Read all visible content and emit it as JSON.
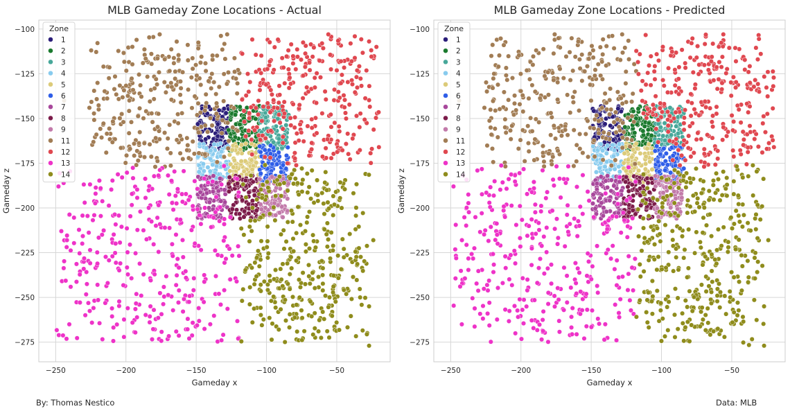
{
  "footer": {
    "left": "By: Thomas Nestico",
    "right": "Data: MLB"
  },
  "colors": {
    "1": "#2b1e7a",
    "2": "#1b7a2e",
    "3": "#48a89a",
    "4": "#88cbee",
    "5": "#dccb79",
    "6": "#2f5ee8",
    "7": "#a8489c",
    "8": "#7c1c4a",
    "9": "#c27aaa",
    "10": "#bbbbbb",
    "11": "#a27d55",
    "12": "#e04850",
    "13": "#ee33c8",
    "14": "#8f8c1c"
  },
  "chart_data": [
    {
      "type": "scatter",
      "title": "MLB Gameday Zone Locations - Actual",
      "xlabel": "Gameday x",
      "ylabel": "Gameday z",
      "xlim": [
        -262,
        -12
      ],
      "ylim": [
        -286,
        -95
      ],
      "y_inverted": true,
      "xticks": [
        -250,
        -200,
        -150,
        -100,
        -50
      ],
      "yticks": [
        -100,
        -125,
        -150,
        -175,
        -200,
        -225,
        -250,
        -275
      ],
      "grid": true,
      "legend": {
        "title": "Zone",
        "position": "top-left",
        "entries": [
          "1",
          "2",
          "3",
          "4",
          "5",
          "6",
          "7",
          "8",
          "9",
          "11",
          "12",
          "13",
          "14"
        ]
      },
      "series": [
        {
          "name": "1",
          "x_range": [
            -149,
            -127
          ],
          "z_range": [
            -168,
            -143
          ],
          "count": 110
        },
        {
          "name": "2",
          "x_range": [
            -127,
            -105
          ],
          "z_range": [
            -168,
            -143
          ],
          "count": 110
        },
        {
          "name": "3",
          "x_range": [
            -105,
            -84
          ],
          "z_range": [
            -168,
            -143
          ],
          "count": 110
        },
        {
          "name": "4",
          "x_range": [
            -149,
            -127
          ],
          "z_range": [
            -186,
            -164
          ],
          "count": 100
        },
        {
          "name": "5",
          "x_range": [
            -127,
            -105
          ],
          "z_range": [
            -186,
            -164
          ],
          "count": 100
        },
        {
          "name": "6",
          "x_range": [
            -105,
            -84
          ],
          "z_range": [
            -186,
            -164
          ],
          "count": 100
        },
        {
          "name": "7",
          "x_range": [
            -149,
            -127
          ],
          "z_range": [
            -206,
            -182
          ],
          "count": 100
        },
        {
          "name": "8",
          "x_range": [
            -127,
            -105
          ],
          "z_range": [
            -206,
            -182
          ],
          "count": 100
        },
        {
          "name": "9",
          "x_range": [
            -105,
            -84
          ],
          "z_range": [
            -206,
            -182
          ],
          "count": 100
        },
        {
          "name": "11",
          "x_range": [
            -225,
            -118
          ],
          "z_range": [
            -177,
            -103
          ],
          "count": 330
        },
        {
          "name": "12",
          "x_range": [
            -118,
            -20
          ],
          "z_range": [
            -177,
            -103
          ],
          "count": 330
        },
        {
          "name": "13",
          "x_range": [
            -250,
            -118
          ],
          "z_range": [
            -275,
            -176
          ],
          "count": 380
        },
        {
          "name": "14",
          "x_range": [
            -118,
            -27
          ],
          "z_range": [
            -277,
            -176
          ],
          "count": 420
        }
      ],
      "outliers": [
        {
          "zone": "13",
          "x": -248,
          "z": -188
        },
        {
          "zone": "13",
          "x": -242,
          "z": -218
        },
        {
          "zone": "13",
          "x": -213,
          "z": -242
        },
        {
          "zone": "13",
          "x": -217,
          "z": -215
        },
        {
          "zone": "13",
          "x": -204,
          "z": -231
        },
        {
          "zone": "13",
          "x": -155,
          "z": -273
        },
        {
          "zone": "13",
          "x": -132,
          "z": -274
        },
        {
          "zone": "13",
          "x": -140,
          "z": -265
        },
        {
          "zone": "11",
          "x": -244,
          "z": -140
        },
        {
          "zone": "11",
          "x": -226,
          "z": -144
        },
        {
          "zone": "11",
          "x": -216,
          "z": -121
        },
        {
          "zone": "11",
          "x": -221,
          "z": -159
        },
        {
          "zone": "11",
          "x": -176,
          "z": -103
        },
        {
          "zone": "11",
          "x": -128,
          "z": -103
        },
        {
          "zone": "12",
          "x": -20,
          "z": -166
        },
        {
          "zone": "12",
          "x": -25,
          "z": -167
        },
        {
          "zone": "12",
          "x": -56,
          "z": -103
        },
        {
          "zone": "12",
          "x": -47,
          "z": -118
        },
        {
          "zone": "14",
          "x": -27,
          "z": -277
        },
        {
          "zone": "14",
          "x": -63,
          "z": -269
        },
        {
          "zone": "14",
          "x": -110,
          "z": -264
        },
        {
          "zone": "14",
          "x": -24,
          "z": -218
        },
        {
          "zone": "14",
          "x": -27,
          "z": -255
        }
      ]
    },
    {
      "type": "scatter",
      "title": "MLB Gameday Zone Locations - Predicted",
      "xlabel": "Gameday x",
      "ylabel": "Gameday z",
      "xlim": [
        -262,
        -12
      ],
      "ylim": [
        -286,
        -95
      ],
      "y_inverted": true,
      "xticks": [
        -250,
        -200,
        -150,
        -100,
        -50
      ],
      "yticks": [
        -100,
        -125,
        -150,
        -175,
        -200,
        -225,
        -250,
        -275
      ],
      "grid": true,
      "legend": {
        "title": "Zone",
        "position": "top-left",
        "entries": [
          "1",
          "2",
          "3",
          "4",
          "5",
          "6",
          "7",
          "8",
          "9",
          "11",
          "12",
          "13",
          "14"
        ]
      },
      "series": [
        {
          "name": "1",
          "x_range": [
            -149,
            -127
          ],
          "z_range": [
            -168,
            -143
          ],
          "count": 110
        },
        {
          "name": "2",
          "x_range": [
            -127,
            -105
          ],
          "z_range": [
            -168,
            -143
          ],
          "count": 110
        },
        {
          "name": "3",
          "x_range": [
            -105,
            -84
          ],
          "z_range": [
            -168,
            -143
          ],
          "count": 110
        },
        {
          "name": "4",
          "x_range": [
            -149,
            -127
          ],
          "z_range": [
            -186,
            -164
          ],
          "count": 100
        },
        {
          "name": "5",
          "x_range": [
            -127,
            -105
          ],
          "z_range": [
            -186,
            -164
          ],
          "count": 100
        },
        {
          "name": "6",
          "x_range": [
            -105,
            -84
          ],
          "z_range": [
            -186,
            -164
          ],
          "count": 100
        },
        {
          "name": "7",
          "x_range": [
            -149,
            -127
          ],
          "z_range": [
            -206,
            -182
          ],
          "count": 100
        },
        {
          "name": "8",
          "x_range": [
            -127,
            -105
          ],
          "z_range": [
            -206,
            -182
          ],
          "count": 100
        },
        {
          "name": "9",
          "x_range": [
            -105,
            -84
          ],
          "z_range": [
            -206,
            -182
          ],
          "count": 100
        },
        {
          "name": "11",
          "x_range": [
            -225,
            -118
          ],
          "z_range": [
            -177,
            -103
          ],
          "count": 330
        },
        {
          "name": "12",
          "x_range": [
            -118,
            -20
          ],
          "z_range": [
            -177,
            -103
          ],
          "count": 330
        },
        {
          "name": "13",
          "x_range": [
            -250,
            -118
          ],
          "z_range": [
            -275,
            -176
          ],
          "count": 380
        },
        {
          "name": "14",
          "x_range": [
            -118,
            -27
          ],
          "z_range": [
            -277,
            -176
          ],
          "count": 420
        }
      ],
      "outliers": [
        {
          "zone": "13",
          "x": -248,
          "z": -188
        },
        {
          "zone": "13",
          "x": -242,
          "z": -218
        },
        {
          "zone": "13",
          "x": -213,
          "z": -242
        },
        {
          "zone": "13",
          "x": -217,
          "z": -215
        },
        {
          "zone": "13",
          "x": -204,
          "z": -231
        },
        {
          "zone": "13",
          "x": -155,
          "z": -273
        },
        {
          "zone": "13",
          "x": -132,
          "z": -274
        },
        {
          "zone": "13",
          "x": -140,
          "z": -265
        },
        {
          "zone": "11",
          "x": -244,
          "z": -140
        },
        {
          "zone": "11",
          "x": -226,
          "z": -144
        },
        {
          "zone": "11",
          "x": -216,
          "z": -121
        },
        {
          "zone": "11",
          "x": -221,
          "z": -159
        },
        {
          "zone": "11",
          "x": -176,
          "z": -103
        },
        {
          "zone": "11",
          "x": -128,
          "z": -103
        },
        {
          "zone": "12",
          "x": -20,
          "z": -166
        },
        {
          "zone": "12",
          "x": -25,
          "z": -167
        },
        {
          "zone": "12",
          "x": -56,
          "z": -103
        },
        {
          "zone": "12",
          "x": -47,
          "z": -118
        },
        {
          "zone": "14",
          "x": -27,
          "z": -277
        },
        {
          "zone": "14",
          "x": -63,
          "z": -269
        },
        {
          "zone": "14",
          "x": -110,
          "z": -264
        },
        {
          "zone": "14",
          "x": -24,
          "z": -218
        },
        {
          "zone": "14",
          "x": -27,
          "z": -255
        }
      ]
    }
  ]
}
